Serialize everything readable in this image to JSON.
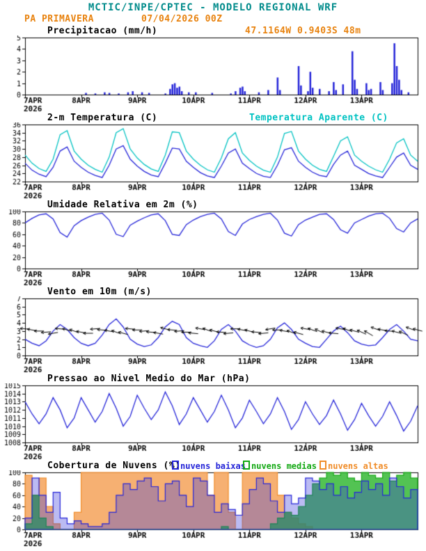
{
  "header": {
    "title": "MCTIC/INPE/CPTEC - MODELO REGIONAL WRF",
    "station": "PA PRIMAVERA",
    "run_datetime": "07/04/2026 00Z",
    "location": "47.1164W 0.9403S 48m"
  },
  "colors": {
    "teal": "#008b8b",
    "orange": "#e8820e",
    "blue": "#2424d8",
    "cyan": "#00c2c2",
    "green": "#12a812",
    "black": "#000000"
  },
  "x_axis": {
    "total_hours": 168,
    "ticks": [
      {
        "hour": 0,
        "label": "7APR",
        "sub": "2026"
      },
      {
        "hour": 24,
        "label": "8APR"
      },
      {
        "hour": 48,
        "label": "9APR"
      },
      {
        "hour": 72,
        "label": "10APR"
      },
      {
        "hour": 96,
        "label": "11APR"
      },
      {
        "hour": 120,
        "label": "12APR"
      },
      {
        "hour": 144,
        "label": "13APR"
      }
    ]
  },
  "chart_data": [
    {
      "id": "precipitation",
      "type": "bar",
      "title": "Precipitacao (mm/h)",
      "ylim": [
        0,
        5
      ],
      "yticks": [
        0,
        1,
        2,
        3,
        4,
        5
      ],
      "series": [
        {
          "name": "precipitacao",
          "color": "#2424d8",
          "step_hours": 1,
          "values": [
            0,
            0,
            0,
            0,
            0,
            0,
            0,
            0,
            0,
            0,
            0,
            0,
            0,
            0,
            0,
            0,
            0,
            0,
            0,
            0,
            0,
            0,
            0,
            0,
            0,
            0,
            0.15,
            0,
            0,
            0,
            0.1,
            0,
            0,
            0,
            0.2,
            0,
            0.15,
            0,
            0,
            0,
            0.1,
            0,
            0,
            0,
            0.2,
            0,
            0.3,
            0,
            0,
            0,
            0.2,
            0,
            0,
            0.15,
            0,
            0,
            0,
            0,
            0,
            0,
            0.1,
            0,
            0.5,
            0.9,
            1.0,
            0.6,
            0.7,
            0.3,
            0,
            0,
            0.2,
            0,
            0,
            0.2,
            0,
            0,
            0,
            0,
            0,
            0,
            0.15,
            0,
            0,
            0,
            0,
            0,
            0,
            0,
            0.1,
            0,
            0.3,
            0,
            0.6,
            0.7,
            0.3,
            0,
            0,
            0,
            0,
            0,
            0.2,
            0,
            0,
            0,
            0.4,
            0,
            0,
            0,
            1.5,
            0.4,
            0,
            0,
            0,
            0,
            0,
            0,
            0,
            2.5,
            0.8,
            0,
            0,
            0.3,
            2.0,
            0.6,
            0,
            0,
            0.5,
            0,
            0,
            0,
            0.3,
            0,
            1.1,
            0.4,
            0,
            0,
            0.9,
            0,
            0,
            0,
            3.8,
            1.3,
            0.5,
            0,
            0,
            0,
            1.0,
            0.4,
            0.5,
            0,
            0,
            0,
            1.1,
            0.4,
            0,
            0,
            0,
            1.0,
            4.5,
            2.5,
            1.3,
            0.4,
            0,
            0,
            0.2,
            0,
            0,
            0
          ]
        }
      ]
    },
    {
      "id": "temperature-2m",
      "type": "line",
      "title": "2-m Temperatura (C)",
      "right_label": "Temperatura Aparente (C)",
      "ylim": [
        22,
        36
      ],
      "yticks": [
        22,
        24,
        26,
        28,
        30,
        32,
        34,
        36
      ],
      "series": [
        {
          "name": "2-m Temperatura (C)",
          "color": "#2424d8",
          "step_hours": 3,
          "values": [
            26.5,
            24.8,
            23.8,
            23.2,
            25.5,
            29.5,
            30.5,
            27.0,
            25.5,
            24.3,
            23.5,
            23.0,
            26.0,
            30.0,
            30.8,
            27.5,
            25.8,
            24.5,
            23.6,
            23.2,
            26.5,
            30.2,
            30.0,
            27.0,
            25.5,
            24.2,
            23.4,
            23.0,
            25.8,
            29.0,
            30.0,
            26.5,
            25.2,
            24.0,
            23.3,
            23.0,
            26.0,
            29.8,
            30.3,
            27.0,
            25.5,
            24.3,
            23.5,
            23.2,
            26.2,
            28.5,
            29.5,
            26.0,
            25.0,
            24.0,
            23.4,
            23.0,
            25.5,
            28.0,
            29.0,
            26.0,
            25.0
          ]
        },
        {
          "name": "Temperatura Aparente (C)",
          "color": "#00c2c2",
          "step_hours": 3,
          "values": [
            28.5,
            26.5,
            25.2,
            24.5,
            27.5,
            33.5,
            34.5,
            29.5,
            27.5,
            26.0,
            25.0,
            24.3,
            28.0,
            34.0,
            35.0,
            30.0,
            27.8,
            26.2,
            25.1,
            24.5,
            28.5,
            34.2,
            34.0,
            29.5,
            27.5,
            26.0,
            24.9,
            24.3,
            27.8,
            32.5,
            34.0,
            29.0,
            27.2,
            25.8,
            24.8,
            24.3,
            28.0,
            33.8,
            34.3,
            29.5,
            27.5,
            26.0,
            25.0,
            24.5,
            28.2,
            32.0,
            33.0,
            28.5,
            27.0,
            25.8,
            24.9,
            24.3,
            27.5,
            31.5,
            32.5,
            28.5,
            27.0
          ]
        }
      ]
    },
    {
      "id": "relative-humidity-2m",
      "type": "line",
      "title": "Umidade Relativa em 2m (%)",
      "ylim": [
        0,
        100
      ],
      "yticks": [
        0,
        20,
        40,
        60,
        80,
        100
      ],
      "series": [
        {
          "name": "umidade relativa",
          "color": "#2424d8",
          "step_hours": 3,
          "values": [
            80,
            88,
            94,
            96,
            87,
            63,
            55,
            75,
            84,
            90,
            95,
            97,
            85,
            60,
            56,
            76,
            83,
            89,
            94,
            96,
            84,
            60,
            58,
            77,
            85,
            91,
            95,
            97,
            87,
            65,
            58,
            78,
            86,
            91,
            95,
            97,
            85,
            62,
            57,
            77,
            85,
            90,
            95,
            96,
            86,
            68,
            62,
            80,
            86,
            92,
            96,
            97,
            88,
            70,
            64,
            80,
            87
          ]
        }
      ]
    },
    {
      "id": "wind-10m",
      "type": "line-barbs",
      "title": "Vento em 10m (m/s)",
      "ylim": [
        0,
        7
      ],
      "yticks": [
        0,
        1,
        2,
        3,
        4,
        5,
        6,
        7
      ],
      "series": [
        {
          "name": "velocidade do vento",
          "color": "#2424d8",
          "step_hours": 3,
          "values": [
            2.0,
            1.5,
            1.2,
            1.8,
            3.0,
            3.8,
            3.2,
            2.2,
            1.5,
            1.2,
            1.5,
            2.5,
            3.8,
            4.5,
            3.5,
            2.0,
            1.4,
            1.1,
            1.3,
            2.2,
            3.5,
            4.2,
            3.8,
            2.2,
            1.5,
            1.2,
            1.0,
            1.8,
            3.2,
            3.8,
            3.0,
            1.8,
            1.3,
            1.0,
            1.2,
            2.0,
            3.4,
            4.0,
            3.2,
            2.0,
            1.5,
            1.1,
            1.0,
            2.0,
            3.0,
            3.6,
            2.8,
            1.8,
            1.4,
            1.2,
            1.3,
            2.2,
            3.2,
            3.8,
            3.0,
            2.0,
            1.8
          ]
        }
      ],
      "barbs": {
        "color": "#000000",
        "anchor_value": 3,
        "step_hours": 3,
        "directions_deg": [
          95,
          100,
          90,
          85,
          80,
          95,
          105,
          110,
          100,
          90,
          85,
          95,
          100,
          110,
          105,
          95,
          90,
          85,
          95,
          100,
          105,
          95,
          85,
          90,
          95,
          100,
          110,
          105,
          95,
          85,
          90,
          100,
          105,
          95,
          85,
          80,
          90,
          100,
          110,
          105,
          100,
          110,
          115,
          105,
          95,
          100,
          110,
          105,
          115,
          120,
          110,
          100,
          95,
          105,
          115,
          110,
          105
        ]
      }
    },
    {
      "id": "mean-sea-level-pressure",
      "type": "line",
      "title": "Pressao ao Nivel Medio do Mar (hPa)",
      "ylim": [
        1008,
        1015
      ],
      "yticks": [
        1008,
        1009,
        1010,
        1011,
        1012,
        1013,
        1014,
        1015
      ],
      "series": [
        {
          "name": "pressao",
          "color": "#2424d8",
          "step_hours": 3,
          "values": [
            1013.0,
            1011.5,
            1010.3,
            1011.5,
            1013.5,
            1012.0,
            1009.8,
            1011.0,
            1013.5,
            1012.0,
            1010.5,
            1011.8,
            1014.0,
            1012.2,
            1010.0,
            1011.2,
            1013.8,
            1012.2,
            1010.8,
            1012.0,
            1014.2,
            1012.5,
            1010.2,
            1011.5,
            1013.5,
            1012.0,
            1010.5,
            1011.8,
            1013.8,
            1012.0,
            1009.8,
            1011.0,
            1013.2,
            1011.8,
            1010.3,
            1011.5,
            1013.5,
            1011.8,
            1009.6,
            1010.8,
            1013.0,
            1011.5,
            1010.2,
            1011.3,
            1013.2,
            1011.5,
            1009.5,
            1010.8,
            1012.8,
            1011.3,
            1010.0,
            1011.2,
            1013.0,
            1011.3,
            1009.4,
            1010.6,
            1012.5
          ]
        }
      ]
    },
    {
      "id": "cloud-cover",
      "type": "area-steps",
      "title": "Cobertura de Nuvens (%)",
      "ylim": [
        0,
        100
      ],
      "yticks": [
        0,
        20,
        40,
        60,
        80,
        100
      ],
      "series": [
        {
          "name": "nuvens baixas",
          "label": "nuvens baixas",
          "color": "#2424d8",
          "fill": "rgba(60,60,220,0.35)",
          "step_hours": 3,
          "values": [
            20,
            90,
            60,
            30,
            65,
            20,
            10,
            15,
            10,
            5,
            5,
            10,
            30,
            60,
            80,
            70,
            85,
            90,
            75,
            50,
            80,
            85,
            60,
            40,
            90,
            85,
            60,
            30,
            45,
            35,
            25,
            45,
            70,
            90,
            80,
            50,
            30,
            60,
            45,
            55,
            90,
            85,
            70,
            80,
            60,
            75,
            55,
            65,
            85,
            70,
            80,
            60,
            90,
            75,
            55,
            70,
            60
          ]
        },
        {
          "name": "nuvens medias",
          "label": "nuvens medias",
          "color": "#12a812",
          "fill": "rgba(40,180,40,0.8)",
          "step_hours": 3,
          "values": [
            10,
            60,
            20,
            5,
            0,
            0,
            0,
            0,
            0,
            0,
            0,
            0,
            0,
            0,
            0,
            0,
            0,
            0,
            0,
            0,
            0,
            0,
            0,
            0,
            0,
            0,
            0,
            0,
            5,
            0,
            0,
            0,
            0,
            0,
            0,
            10,
            20,
            30,
            25,
            40,
            60,
            80,
            90,
            100,
            95,
            100,
            90,
            85,
            100,
            95,
            90,
            100,
            85,
            95,
            100,
            90,
            80
          ]
        },
        {
          "name": "nuvens altas",
          "label": "nuvens altas",
          "color": "#f08c28",
          "fill": "rgba(244,162,89,0.85)",
          "step_hours": 3,
          "values": [
            95,
            60,
            90,
            40,
            10,
            0,
            0,
            30,
            100,
            100,
            100,
            100,
            100,
            100,
            100,
            100,
            100,
            100,
            100,
            100,
            100,
            100,
            100,
            100,
            100,
            100,
            60,
            100,
            100,
            30,
            0,
            100,
            100,
            100,
            100,
            100,
            60,
            30,
            20,
            10,
            5,
            0,
            0,
            0,
            0,
            0,
            0,
            0,
            0,
            0,
            0,
            0,
            0,
            0,
            0,
            0,
            0
          ]
        }
      ]
    }
  ]
}
